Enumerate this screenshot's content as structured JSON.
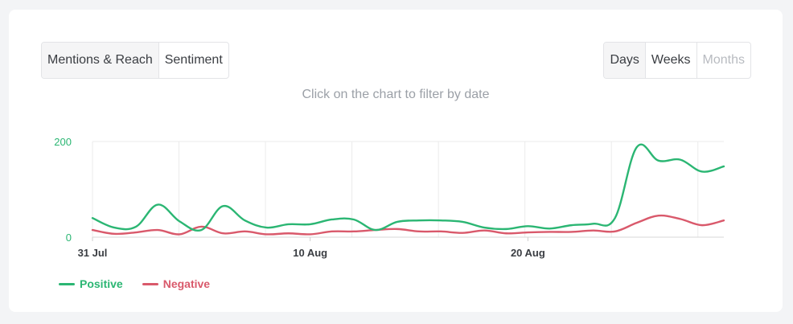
{
  "tabs": {
    "mentions_reach": "Mentions & Reach",
    "sentiment": "Sentiment"
  },
  "periods": {
    "days": "Days",
    "weeks": "Weeks",
    "months": "Months"
  },
  "hint": "Click on the chart to filter by date",
  "colors": {
    "positive": "#2bb673",
    "negative": "#d9596b",
    "grid": "#ebebeb"
  },
  "chart_data": {
    "type": "line",
    "x_start": "31 Jul",
    "x_end": "29 Aug",
    "x_tick_labels": [
      "31 Jul",
      "10 Aug",
      "20 Aug"
    ],
    "x_tick_days": [
      0,
      10,
      20
    ],
    "y_tick_labels": [
      "0",
      "200"
    ],
    "ylim": [
      0,
      200
    ],
    "grid": true,
    "legend": "bottom-left",
    "series": [
      {
        "name": "Positive",
        "color": "#2bb673",
        "values": [
          40,
          20,
          22,
          68,
          33,
          15,
          65,
          35,
          20,
          27,
          27,
          37,
          37,
          15,
          32,
          35,
          35,
          32,
          20,
          17,
          23,
          18,
          25,
          28,
          40,
          188,
          160,
          162,
          137,
          148
        ]
      },
      {
        "name": "Negative",
        "color": "#d9596b",
        "values": [
          15,
          7,
          10,
          15,
          6,
          22,
          8,
          12,
          6,
          8,
          6,
          12,
          12,
          15,
          17,
          12,
          12,
          9,
          14,
          8,
          10,
          11,
          11,
          14,
          12,
          30,
          45,
          38,
          25,
          35
        ]
      }
    ]
  }
}
